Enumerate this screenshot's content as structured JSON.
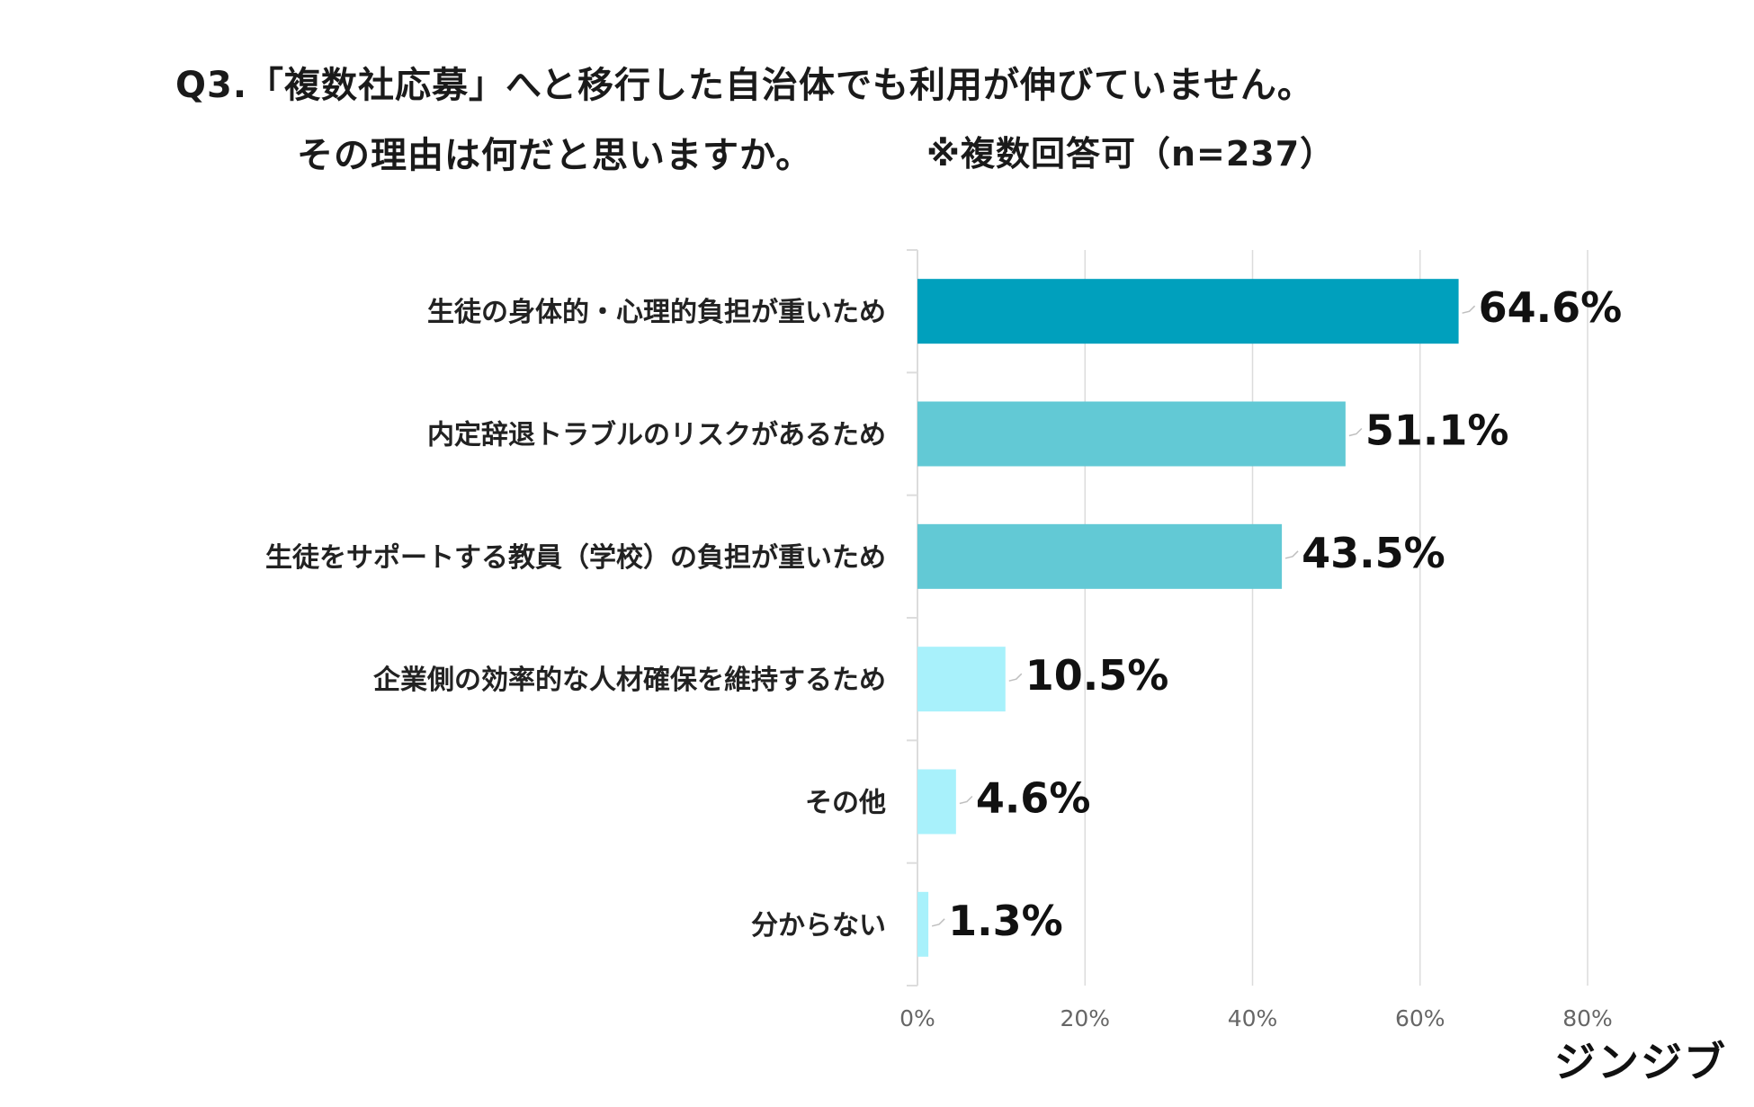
{
  "title": {
    "line1": "Q3.「複数社応募」へと移行した自治体でも利用が伸びていません。",
    "line2": "その理由は何だと思いますか。",
    "note": "※複数回答可（n=237）"
  },
  "brand": {
    "name": "ジンジブ"
  },
  "colors": {
    "bar_dark": "#00A0BD",
    "bar_medium": "#62C9D5",
    "bar_light": "#A8F1FB",
    "grid": "#dcdcdc",
    "leader": "#bfbfbf"
  },
  "chart_data": {
    "type": "bar",
    "orientation": "horizontal",
    "categories": [
      "生徒の身体的・心理的負担が重いため",
      "内定辞退トラブルのリスクがあるため",
      "生徒をサポートする教員（学校）の負担が重いため",
      "企業側の効率的な人材確保を維持するため",
      "その他",
      "分からない"
    ],
    "values": [
      64.6,
      51.1,
      43.5,
      10.5,
      4.6,
      1.3
    ],
    "value_labels": [
      "64.6%",
      "51.1%",
      "43.5%",
      "10.5%",
      "4.6%",
      "1.3%"
    ],
    "bar_color_keys": [
      "bar_dark",
      "bar_medium",
      "bar_medium",
      "bar_light",
      "bar_light",
      "bar_light"
    ],
    "xlim": [
      0,
      80
    ],
    "ticks": [
      0,
      20,
      40,
      60,
      80
    ],
    "tick_labels": [
      "0%",
      "20%",
      "40%",
      "60%",
      "80%"
    ],
    "grid": true
  }
}
